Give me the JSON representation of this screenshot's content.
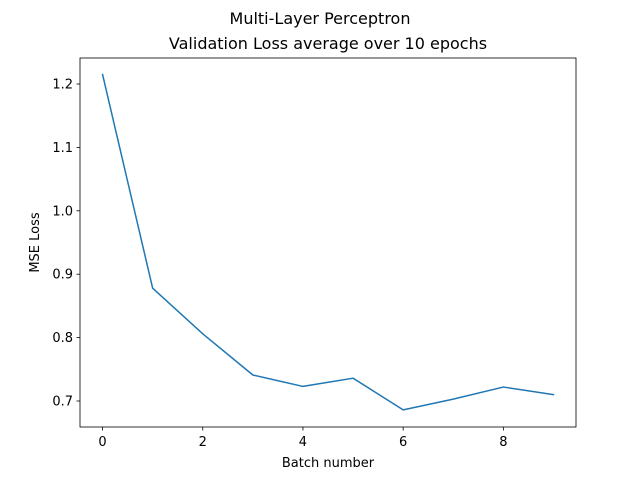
{
  "chart_data": {
    "type": "line",
    "suptitle": "Multi-Layer Perceptron",
    "title": "Validation Loss average over 10 epochs",
    "xlabel": "Batch number",
    "ylabel": "MSE Loss",
    "xlim": [
      -0.45,
      9.45
    ],
    "ylim": [
      0.659,
      1.241
    ],
    "xticks": [
      0,
      2,
      4,
      6,
      8
    ],
    "yticks": [
      0.7,
      0.8,
      0.9,
      1.0,
      1.1,
      1.2
    ],
    "grid": false,
    "legend": "none",
    "line_color": "#1f77b4",
    "series": [
      {
        "x": [
          0,
          1,
          2,
          3,
          4,
          5,
          6,
          7,
          8,
          9
        ],
        "values": [
          1.215,
          0.878,
          0.806,
          0.741,
          0.723,
          0.736,
          0.686,
          0.703,
          0.722,
          0.71
        ]
      }
    ]
  }
}
